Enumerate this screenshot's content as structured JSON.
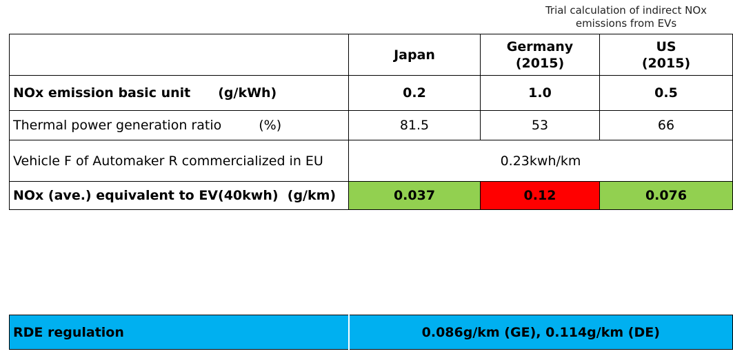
{
  "caption": {
    "line1": "Trial calculation of indirect NOx",
    "line2": "emissions from EVs"
  },
  "header": {
    "col1": "Japan",
    "col2_line1": "Germany",
    "col2_line2": "(2015)",
    "col3_line1": "US",
    "col3_line2": "(2015)"
  },
  "rows": [
    {
      "label": "NOx emission basic unit",
      "unit": "(g/kWh)",
      "values": [
        "0.2",
        "1.0",
        "0.5"
      ]
    },
    {
      "label": "Thermal power generation ratio",
      "unit": "(%)",
      "values": [
        "81.5",
        "53",
        "66"
      ]
    },
    {
      "label": "Vehicle F of Automaker R commercialized in EU",
      "value_merged": "0.23kwh/km"
    },
    {
      "label": "NOx (ave.) equivalent to EV(40kwh)",
      "unit": "(g/km)",
      "values": [
        "0.037",
        "0.12",
        "0.076"
      ],
      "cell_colors": [
        "#92d050",
        "#ff0000",
        "#92d050"
      ]
    }
  ],
  "rde": {
    "label": "RDE regulation",
    "value": "0.086g/km (GE),  0.114g/km (DE)",
    "color": "#00b0f0"
  }
}
